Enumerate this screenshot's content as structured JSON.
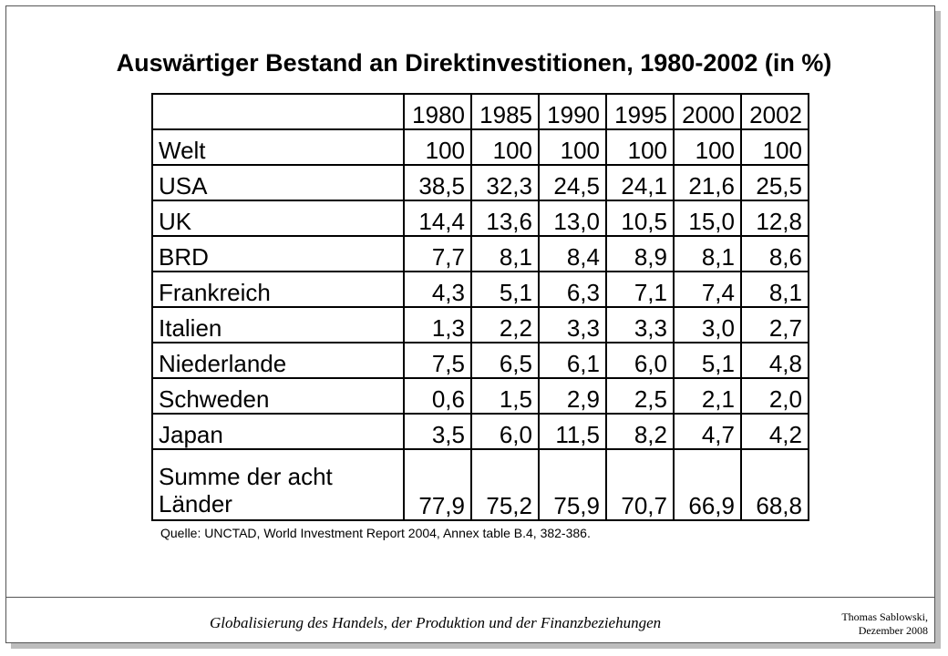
{
  "footer": {
    "text": "Globalisierung des Handels, der Produktion und der Finanzbeziehungen",
    "author_line1": "Thomas Sablowski,",
    "author_line2": "Dezember 2008"
  },
  "chart_data": {
    "type": "table",
    "title": "Auswärtiger Bestand an Direktinvestitionen, 1980-2002 (in %)",
    "columns": [
      "1980",
      "1985",
      "1990",
      "1995",
      "2000",
      "2002"
    ],
    "rows": [
      {
        "label": "Welt",
        "values": [
          "100",
          "100",
          "100",
          "100",
          "100",
          "100"
        ]
      },
      {
        "label": "USA",
        "values": [
          "38,5",
          "32,3",
          "24,5",
          "24,1",
          "21,6",
          "25,5"
        ]
      },
      {
        "label": "UK",
        "values": [
          "14,4",
          "13,6",
          "13,0",
          "10,5",
          "15,0",
          "12,8"
        ]
      },
      {
        "label": "BRD",
        "values": [
          "7,7",
          "8,1",
          "8,4",
          "8,9",
          "8,1",
          "8,6"
        ]
      },
      {
        "label": "Frankreich",
        "values": [
          "4,3",
          "5,1",
          "6,3",
          "7,1",
          "7,4",
          "8,1"
        ]
      },
      {
        "label": "Italien",
        "values": [
          "1,3",
          "2,2",
          "3,3",
          "3,3",
          "3,0",
          "2,7"
        ]
      },
      {
        "label": "Niederlande",
        "values": [
          "7,5",
          "6,5",
          "6,1",
          "6,0",
          "5,1",
          "4,8"
        ]
      },
      {
        "label": "Schweden",
        "values": [
          "0,6",
          "1,5",
          "2,9",
          "2,5",
          "2,1",
          "2,0"
        ]
      },
      {
        "label": "Japan",
        "values": [
          "3,5",
          "6,0",
          "11,5",
          "8,2",
          "4,7",
          "4,2"
        ]
      },
      {
        "label_line1": "Summe der acht",
        "label_line2": "Länder",
        "values": [
          "77,9",
          "75,2",
          "75,9",
          "70,7",
          "66,9",
          "68,8"
        ]
      }
    ],
    "source": "Quelle: UNCTAD, World Investment Report 2004, Annex table B.4, 382-386."
  }
}
